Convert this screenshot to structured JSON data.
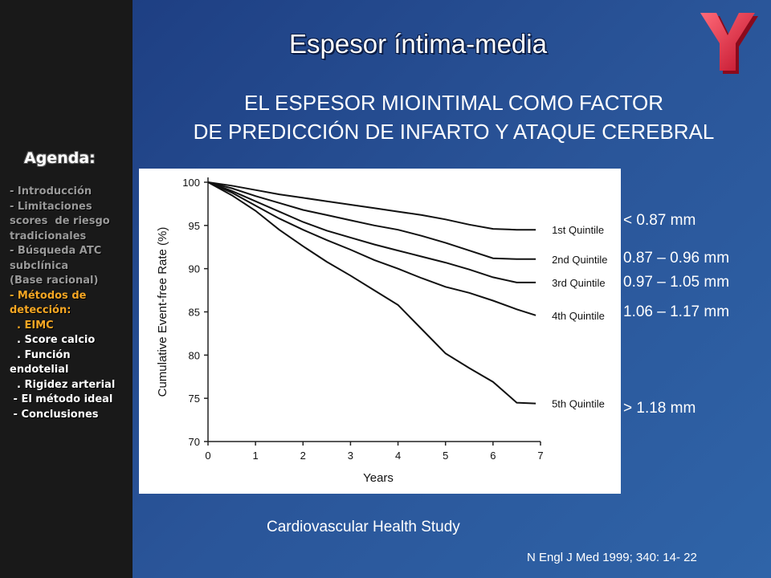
{
  "title": "Espesor íntima-media",
  "subtitle_lines": [
    "EL ESPESOR MIOINTIMAL COMO FACTOR",
    "DE PREDICCIÓN DE INFARTO Y ATAQUE CEREBRAL"
  ],
  "agenda": {
    "title": "Agenda:",
    "items": [
      {
        "text": "- Introducción",
        "style": "gray"
      },
      {
        "text": "- Limitaciones",
        "style": "gray"
      },
      {
        "text": "scores  de riesgo",
        "style": "gray"
      },
      {
        "text": "tradicionales",
        "style": "gray"
      },
      {
        "text": "- Búsqueda ATC",
        "style": "gray"
      },
      {
        "text": "subclínica",
        "style": "gray"
      },
      {
        "text": "(Base racional)",
        "style": "gray"
      },
      {
        "text": "- Métodos de",
        "style": "orange"
      },
      {
        "text": "detección:",
        "style": "orange"
      },
      {
        "text": "  . EIMC",
        "style": "orange"
      },
      {
        "text": "  . Score calcio",
        "style": "white"
      },
      {
        "text": "  . Función",
        "style": "white"
      },
      {
        "text": "endotelial",
        "style": "white"
      },
      {
        "text": "  . Rigidez arterial",
        "style": "white"
      },
      {
        "text": " - El método ideal",
        "style": "white"
      },
      {
        "text": " - Conclusiones",
        "style": "white"
      }
    ]
  },
  "quintile_ranges": [
    "< 0.87 mm",
    "0.87 – 0.96 mm",
    "0.97 – 1.05 mm",
    "1.06 – 1.17 mm",
    "> 1.18 mm"
  ],
  "study_label": "Cardiovascular Health Study",
  "citation": "N Engl J Med 1999; 340: 14- 22",
  "colors": {
    "background": "#2a5599",
    "sidebar": "#191919",
    "agenda_active": "#f5a623",
    "logo": "#e0203a"
  },
  "chart_data": {
    "type": "line",
    "xlabel": "Years",
    "ylabel": "Cumulative Event-free Rate (%)",
    "xlim": [
      0,
      7
    ],
    "ylim": [
      70,
      100
    ],
    "xticks": [
      "0",
      "1",
      "2",
      "3",
      "4",
      "5",
      "6",
      "7"
    ],
    "yticks": [
      "70",
      "75",
      "80",
      "85",
      "90",
      "95",
      "100"
    ],
    "series": [
      {
        "name": "1st Quintile",
        "x": [
          0,
          0.5,
          1,
          1.5,
          2,
          2.5,
          3,
          3.5,
          4,
          4.5,
          5,
          5.5,
          6,
          6.5,
          6.9
        ],
        "y": [
          100,
          99.6,
          99.1,
          98.6,
          98.2,
          97.8,
          97.4,
          97.0,
          96.6,
          96.2,
          95.7,
          95.1,
          94.6,
          94.5,
          94.5
        ]
      },
      {
        "name": "2nd Quintile",
        "x": [
          0,
          0.5,
          1,
          1.5,
          2,
          2.5,
          3,
          3.5,
          4,
          4.5,
          5,
          5.5,
          6,
          6.5,
          6.9
        ],
        "y": [
          100,
          99.3,
          98.4,
          97.6,
          96.8,
          96.2,
          95.6,
          95.0,
          94.5,
          93.8,
          93.0,
          92.1,
          91.2,
          91.1,
          91.1
        ]
      },
      {
        "name": "3rd Quintile",
        "x": [
          0,
          0.5,
          1,
          1.5,
          2,
          2.5,
          3,
          3.5,
          4,
          4.5,
          5,
          5.5,
          6,
          6.5,
          6.9
        ],
        "y": [
          100,
          99.0,
          97.8,
          96.6,
          95.4,
          94.4,
          93.6,
          92.8,
          92.1,
          91.4,
          90.7,
          89.9,
          89.0,
          88.4,
          88.4
        ]
      },
      {
        "name": "4th Quintile",
        "x": [
          0,
          0.5,
          1,
          1.5,
          2,
          2.5,
          3,
          3.5,
          4,
          4.5,
          5,
          5.5,
          6,
          6.5,
          6.9
        ],
        "y": [
          100,
          98.8,
          97.3,
          95.8,
          94.5,
          93.3,
          92.2,
          91.0,
          90.0,
          88.9,
          87.9,
          87.2,
          86.3,
          85.3,
          84.6
        ]
      },
      {
        "name": "5th Quintile",
        "x": [
          0,
          0.5,
          1,
          1.5,
          2,
          2.5,
          3,
          3.5,
          4,
          4.5,
          5,
          5.5,
          6,
          6.5,
          6.9
        ],
        "y": [
          100,
          98.5,
          96.7,
          94.5,
          92.6,
          90.8,
          89.2,
          87.5,
          85.8,
          83.0,
          80.2,
          78.5,
          76.9,
          74.5,
          74.4
        ]
      }
    ]
  }
}
